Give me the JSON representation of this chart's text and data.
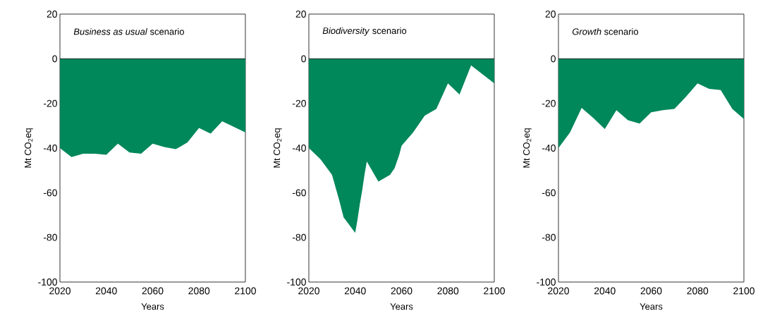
{
  "chart_data": [
    {
      "type": "area",
      "title": "*Business as usual* scenario",
      "xlabel": "Years",
      "ylabel": "Mt CO$_{2}$eq",
      "x": [
        2020,
        2025,
        2030,
        2035,
        2040,
        2045,
        2050,
        2055,
        2060,
        2065,
        2070,
        2075,
        2080,
        2085,
        2090,
        2095,
        2100
      ],
      "series": [
        {
          "color": "#00875a",
          "values": [
            -40,
            -44,
            -42.5,
            -42.5,
            -43,
            -38,
            -42,
            -42.5,
            -38,
            -39.5,
            -40.5,
            -37.5,
            -31,
            -33.5,
            -28,
            -30.5,
            -33
          ]
        }
      ],
      "xlim": [
        2020,
        2100
      ],
      "ylim": [
        -100,
        20
      ],
      "xticks": [
        2020,
        2040,
        2060,
        2080,
        2100
      ],
      "yticks": [
        -100,
        -80,
        -60,
        -40,
        -20,
        0,
        20
      ],
      "ref_lines": [
        {
          "axis": "y",
          "value": 0
        }
      ]
    },
    {
      "type": "area",
      "title": "*Biodiversity* scenario",
      "xlabel": "Years",
      "ylabel": "Mt CO$_{2}$eq",
      "x": [
        2020,
        2025,
        2030,
        2033,
        2035,
        2040,
        2041,
        2042,
        2043,
        2044,
        2045,
        2050,
        2055,
        2057,
        2059,
        2060,
        2065,
        2070,
        2075,
        2080,
        2085,
        2090,
        2095,
        2100
      ],
      "series": [
        {
          "color": "#00875a",
          "values": [
            -40,
            -45,
            -52,
            -63,
            -71,
            -78,
            -72,
            -65,
            -59,
            -52,
            -46,
            -55,
            -52,
            -49,
            -43,
            -39,
            -33,
            -25.5,
            -22.5,
            -11,
            -16,
            -3,
            -7,
            -11
          ]
        }
      ],
      "xlim": [
        2020,
        2100
      ],
      "ylim": [
        -100,
        20
      ],
      "xticks": [
        2020,
        2040,
        2060,
        2080,
        2100
      ],
      "yticks": [
        -100,
        -80,
        -60,
        -40,
        -20,
        0,
        20
      ],
      "ref_lines": [
        {
          "axis": "y",
          "value": 0
        }
      ]
    },
    {
      "type": "area",
      "title": "*Growth* scenario",
      "xlabel": "Years",
      "ylabel": "Mt CO$_{2}$eq",
      "x": [
        2020,
        2025,
        2030,
        2035,
        2040,
        2045,
        2050,
        2055,
        2060,
        2065,
        2070,
        2075,
        2080,
        2085,
        2090,
        2095,
        2100
      ],
      "series": [
        {
          "color": "#00875a",
          "values": [
            -40,
            -33,
            -22,
            -26.5,
            -31.5,
            -23,
            -27.5,
            -29,
            -24,
            -23,
            -22.5,
            -17,
            -11,
            -13.5,
            -14,
            -22.5,
            -27
          ]
        }
      ],
      "xlim": [
        2020,
        2100
      ],
      "ylim": [
        -100,
        20
      ],
      "xticks": [
        2020,
        2040,
        2060,
        2080,
        2100
      ],
      "yticks": [
        -100,
        -80,
        -60,
        -40,
        -20,
        0,
        20
      ],
      "ref_lines": [
        {
          "axis": "y",
          "value": 0
        }
      ]
    }
  ]
}
